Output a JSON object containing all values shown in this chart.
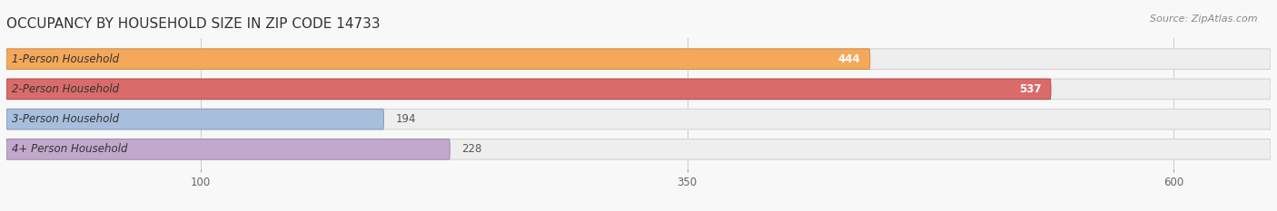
{
  "title": "OCCUPANCY BY HOUSEHOLD SIZE IN ZIP CODE 14733",
  "source": "Source: ZipAtlas.com",
  "categories": [
    "1-Person Household",
    "2-Person Household",
    "3-Person Household",
    "4+ Person Household"
  ],
  "values": [
    444,
    537,
    194,
    228
  ],
  "bar_colors": [
    "#F5A85A",
    "#D96B6B",
    "#A8BEDD",
    "#C2A8CC"
  ],
  "bar_edge_colors": [
    "#D4884A",
    "#B84848",
    "#8898BB",
    "#A088AA"
  ],
  "value_colors": [
    "white",
    "white",
    "#555555",
    "#555555"
  ],
  "xlim": [
    0,
    650
  ],
  "xticks": [
    100,
    350,
    600
  ],
  "figsize": [
    14.06,
    2.33
  ],
  "dpi": 100,
  "bg_color": "#f8f8f8",
  "bar_bg_color": "#eeeeee",
  "bar_bg_edge_color": "#d0d0d0",
  "title_fontsize": 11,
  "label_fontsize": 8.5,
  "value_fontsize": 8.5,
  "source_fontsize": 8,
  "bar_height": 0.68,
  "bar_gap": 0.32
}
